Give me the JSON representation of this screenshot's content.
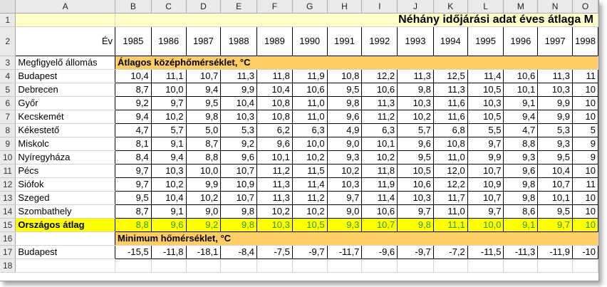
{
  "columns": [
    "A",
    "B",
    "C",
    "D",
    "E",
    "F",
    "G",
    "H",
    "I",
    "J",
    "K",
    "L",
    "M",
    "N",
    "O"
  ],
  "title": "Néhány időjárási adat éves átlaga M",
  "ev_label": "Év",
  "years": [
    "1985",
    "1986",
    "1987",
    "1988",
    "1989",
    "1990",
    "1991",
    "1992",
    "1993",
    "1994",
    "1995",
    "1996",
    "1997",
    "1998"
  ],
  "station_header": "Megfigyelő állomás",
  "section1": "Átlagos középhőmérséklet, °C",
  "section2": "Minimum hőmérséklet, °C",
  "avg_stations": [
    {
      "row": "4",
      "name": "Budapest",
      "values": [
        "10,4",
        "11,1",
        "10,7",
        "11,3",
        "11,8",
        "11,9",
        "10,8",
        "12,2",
        "11,3",
        "12,5",
        "11,4",
        "10,6",
        "11,3",
        "11"
      ]
    },
    {
      "row": "5",
      "name": "Debrecen",
      "values": [
        "8,7",
        "10,0",
        "9,4",
        "9,9",
        "10,4",
        "10,6",
        "9,5",
        "10,6",
        "9,8",
        "11,3",
        "10,5",
        "10,1",
        "10,3",
        "10"
      ]
    },
    {
      "row": "6",
      "name": "Győr",
      "values": [
        "9,2",
        "9,7",
        "9,5",
        "10,4",
        "10,8",
        "11,0",
        "9,8",
        "11,3",
        "10,3",
        "11,6",
        "10,3",
        "9,1",
        "9,9",
        "10"
      ]
    },
    {
      "row": "7",
      "name": "Kecskemét",
      "values": [
        "9,4",
        "10,2",
        "9,8",
        "10,3",
        "10,8",
        "11,0",
        "9,6",
        "11,2",
        "10,2",
        "11,6",
        "10,5",
        "9,4",
        "9,9",
        "10"
      ]
    },
    {
      "row": "8",
      "name": "Kékestető",
      "values": [
        "4,7",
        "5,7",
        "5,0",
        "5,3",
        "6,2",
        "6,3",
        "4,9",
        "6,3",
        "5,7",
        "6,8",
        "5,5",
        "4,7",
        "5,3",
        "5"
      ]
    },
    {
      "row": "9",
      "name": "Miskolc",
      "values": [
        "8,1",
        "9,1",
        "8,7",
        "9,2",
        "9,6",
        "10,0",
        "9,0",
        "10,1",
        "9,6",
        "10,8",
        "9,7",
        "8,8",
        "9,3",
        "9"
      ]
    },
    {
      "row": "10",
      "name": "Nyíregyháza",
      "values": [
        "8,4",
        "9,4",
        "8,8",
        "9,6",
        "10,1",
        "10,2",
        "9,3",
        "10,2",
        "9,5",
        "11,0",
        "9,9",
        "9,3",
        "9,5",
        "9"
      ]
    },
    {
      "row": "11",
      "name": "Pécs",
      "values": [
        "9,7",
        "10,3",
        "10,0",
        "10,7",
        "11,2",
        "11,5",
        "10,2",
        "11,8",
        "10,5",
        "12,0",
        "10,7",
        "9,6",
        "10,4",
        "10"
      ]
    },
    {
      "row": "12",
      "name": "Siófok",
      "values": [
        "9,7",
        "10,2",
        "9,9",
        "10,9",
        "11,3",
        "11,4",
        "10,3",
        "11,9",
        "10,6",
        "12,2",
        "10,9",
        "9,8",
        "10,7",
        "11"
      ]
    },
    {
      "row": "13",
      "name": "Szeged",
      "values": [
        "9,5",
        "10,4",
        "10,2",
        "10,7",
        "11,3",
        "11,2",
        "9,7",
        "11,4",
        "10,3",
        "11,7",
        "10,7",
        "9,8",
        "10,1",
        "10"
      ]
    },
    {
      "row": "14",
      "name": "Szombathely",
      "values": [
        "8,7",
        "9,1",
        "9,0",
        "9,8",
        "10,2",
        "10,2",
        "9,0",
        "10,6",
        "9,7",
        "11,0",
        "9,7",
        "8,6",
        "9,5",
        "10"
      ]
    }
  ],
  "national_avg": {
    "row": "15",
    "name": "Országos átlag",
    "values": [
      "8,8",
      "9,6",
      "9,2",
      "9,8",
      "10,3",
      "10,5",
      "9,3",
      "10,7",
      "9,8",
      "11,1",
      "10,0",
      "9,1",
      "9,7",
      "10"
    ]
  },
  "min_stations": [
    {
      "row": "17",
      "name": "Budapest",
      "values": [
        "-15,5",
        "-11,8",
        "-18,1",
        "-8,4",
        "-7,5",
        "-9,7",
        "-11,7",
        "-9,6",
        "-9,7",
        "-7,2",
        "-11,5",
        "-11,3",
        "-11,9",
        "-10"
      ]
    }
  ],
  "colors": {
    "title_bg": "#ffffcc",
    "section_bg": "#ffcc66",
    "avg_bg": "#ffff00",
    "avg_text": "#339933",
    "header_bg": "#eaeaea"
  }
}
